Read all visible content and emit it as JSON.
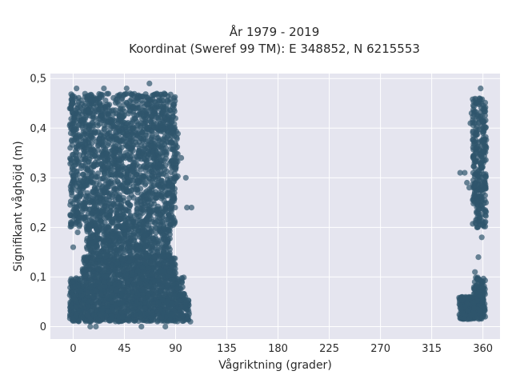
{
  "chart_data": {
    "type": "scatter",
    "title_lines": [
      "År 1979 - 2019",
      "Koordinat (Sweref 99 TM): E 348852, N 6215553"
    ],
    "xlabel": "Vågriktning (grader)",
    "ylabel": "Signifikant våghöjd (m)",
    "xlim": [
      -20,
      375
    ],
    "ylim": [
      -0.025,
      0.51
    ],
    "x_ticks": [
      0,
      45,
      90,
      135,
      180,
      225,
      270,
      315,
      360
    ],
    "x_tick_labels": [
      "0",
      "45",
      "90",
      "135",
      "180",
      "225",
      "270",
      "315",
      "360"
    ],
    "y_ticks": [
      0,
      0.1,
      0.2,
      0.3,
      0.4,
      0.5
    ],
    "y_tick_labels": [
      "0",
      "0,1",
      "0,2",
      "0,3",
      "0,4",
      "0,5"
    ],
    "grid": true,
    "legend": "none",
    "colors": {
      "plot_bg": "#e5e5ef",
      "grid": "#ffffff",
      "marker": "#2f566c"
    },
    "series": [
      {
        "marker_opacity": 0.7,
        "regions": [
          {
            "x_range": [
              -3,
              102
            ],
            "y_range": [
              0.01,
              0.06
            ],
            "count": 900
          },
          {
            "x_range": [
              -3,
              98
            ],
            "y_range": [
              0.06,
              0.1
            ],
            "count": 600
          },
          {
            "x_range": [
              8,
              90
            ],
            "y_range": [
              0.1,
              0.14
            ],
            "count": 500
          },
          {
            "x_range": [
              12,
              85
            ],
            "y_range": [
              0.14,
              0.2
            ],
            "count": 450
          },
          {
            "x_range": [
              -3,
              90
            ],
            "y_range": [
              0.2,
              0.3
            ],
            "count": 700
          },
          {
            "x_range": [
              -3,
              92
            ],
            "y_range": [
              0.3,
              0.4
            ],
            "count": 700
          },
          {
            "x_range": [
              -3,
              90
            ],
            "y_range": [
              0.4,
              0.47
            ],
            "count": 500
          },
          {
            "x_range": [
              339,
              362
            ],
            "y_range": [
              0.015,
              0.06
            ],
            "count": 300
          },
          {
            "x_range": [
              352,
              362
            ],
            "y_range": [
              0.06,
              0.1
            ],
            "count": 80
          },
          {
            "x_range": [
              351,
              363
            ],
            "y_range": [
              0.2,
              0.46
            ],
            "count": 300
          }
        ],
        "points": [
          {
            "x": 3,
            "y": 0.48
          },
          {
            "x": 27,
            "y": 0.48
          },
          {
            "x": 47,
            "y": 0.48
          },
          {
            "x": 67,
            "y": 0.49
          },
          {
            "x": 80,
            "y": 0.47
          },
          {
            "x": 104,
            "y": 0.24
          },
          {
            "x": 99,
            "y": 0.3
          },
          {
            "x": 95,
            "y": 0.34
          },
          {
            "x": 88,
            "y": 0.22
          },
          {
            "x": 85,
            "y": 0.2
          },
          {
            "x": 100,
            "y": 0.24
          },
          {
            "x": 15,
            "y": 0.0
          },
          {
            "x": 20,
            "y": 0.0
          },
          {
            "x": 60,
            "y": 0.0
          },
          {
            "x": 81,
            "y": 0.0
          },
          {
            "x": 0,
            "y": 0.16
          },
          {
            "x": 4,
            "y": 0.19
          },
          {
            "x": 12,
            "y": 0.16
          },
          {
            "x": 103,
            "y": 0.01
          },
          {
            "x": 101,
            "y": 0.02
          },
          {
            "x": 340,
            "y": 0.31
          },
          {
            "x": 344,
            "y": 0.31
          },
          {
            "x": 346,
            "y": 0.29
          },
          {
            "x": 348,
            "y": 0.28
          },
          {
            "x": 349,
            "y": 0.41
          },
          {
            "x": 350,
            "y": 0.43
          },
          {
            "x": 356,
            "y": 0.14
          },
          {
            "x": 359,
            "y": 0.18
          },
          {
            "x": 353,
            "y": 0.11
          },
          {
            "x": 358,
            "y": 0.48
          },
          {
            "x": 357,
            "y": 0.46
          },
          {
            "x": 361,
            "y": 0.44
          },
          {
            "x": 360,
            "y": 0.09
          },
          {
            "x": 362,
            "y": 0.02
          }
        ]
      }
    ]
  }
}
